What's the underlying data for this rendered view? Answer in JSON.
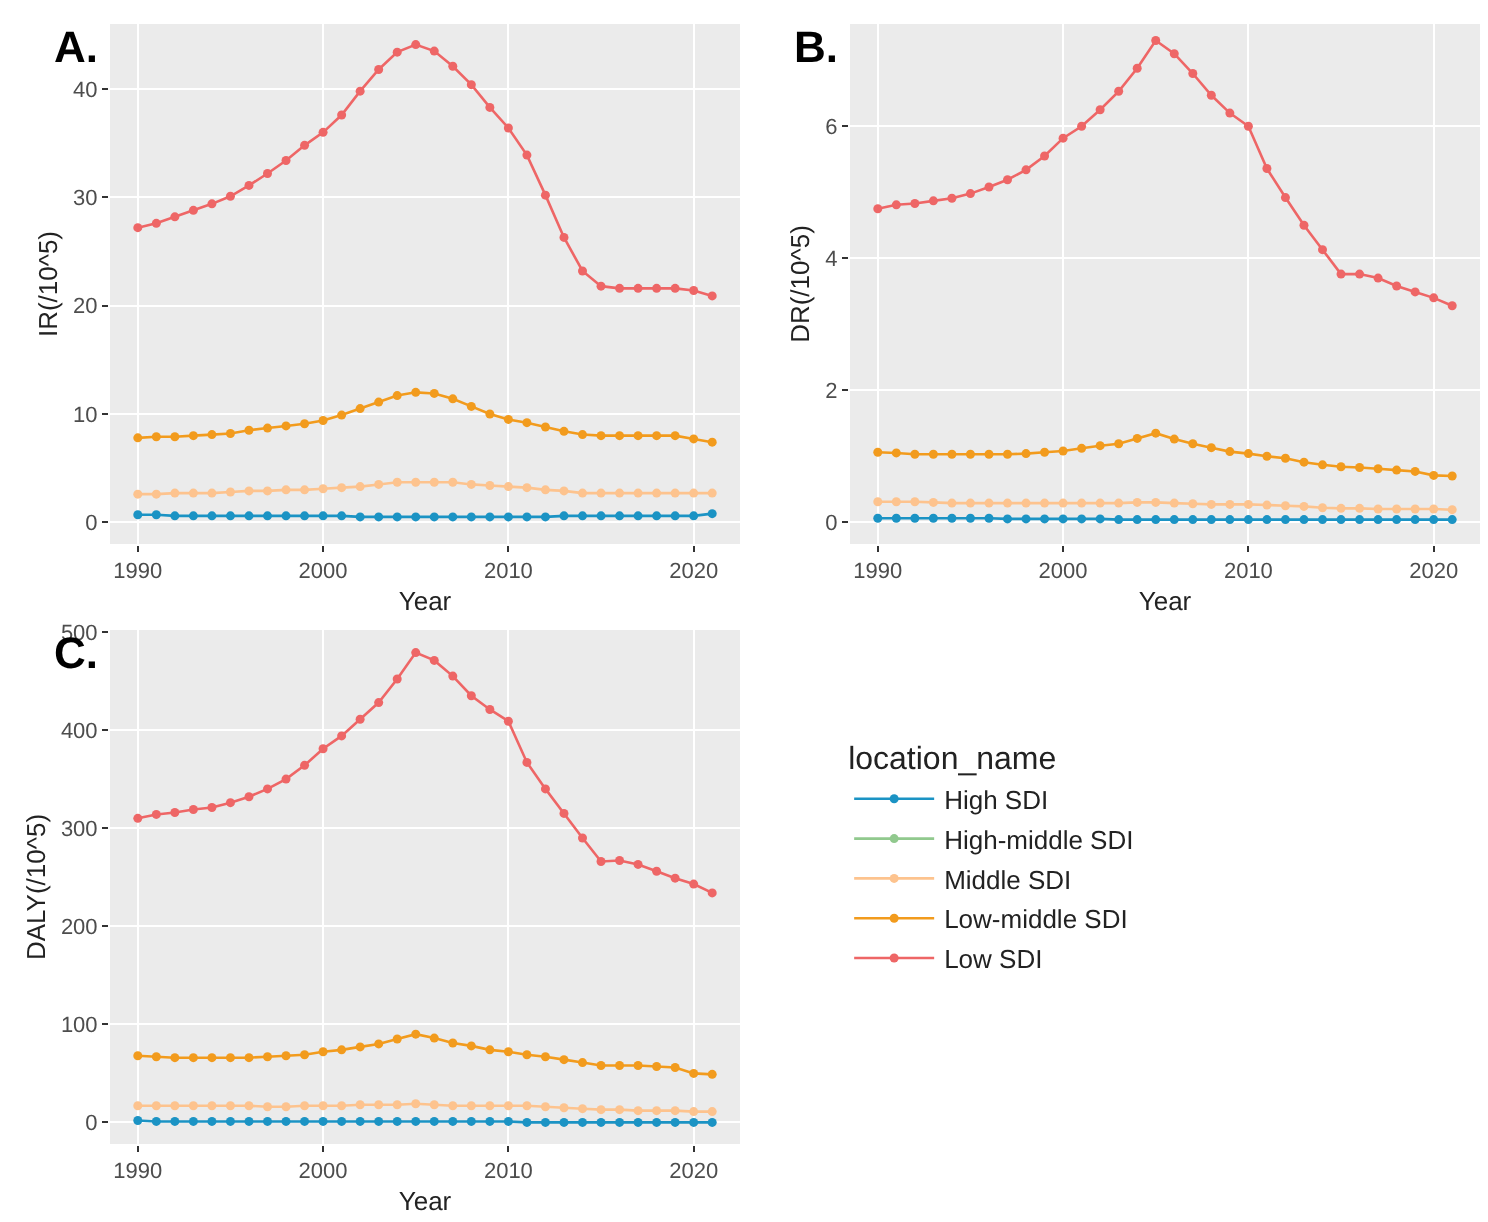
{
  "chart_data": [
    {
      "type": "line",
      "title": "A.",
      "legend": "bottom right",
      "legend_title": "location_name",
      "xlabel": "Year",
      "ylabel": "IR(/10^5)",
      "x": [
        1990,
        1991,
        1992,
        1993,
        1994,
        1995,
        1996,
        1997,
        1998,
        1999,
        2000,
        2001,
        2002,
        2003,
        2004,
        2005,
        2006,
        2007,
        2008,
        2009,
        2010,
        2011,
        2012,
        2013,
        2014,
        2015,
        2016,
        2017,
        2018,
        2019,
        2020,
        2021
      ],
      "xlim": [
        1988.5,
        2022.5
      ],
      "xticks": [
        1990,
        2000,
        2010,
        2020
      ],
      "ylim": [
        -2,
        46
      ],
      "yticks": [
        0,
        10,
        20,
        30,
        40
      ],
      "grid": true,
      "marker": "circle",
      "line_style": "solid",
      "series": [
        {
          "name": "High SDI",
          "color": "#1b93c4",
          "values": [
            0.7,
            0.7,
            0.6,
            0.6,
            0.6,
            0.6,
            0.6,
            0.6,
            0.6,
            0.6,
            0.6,
            0.6,
            0.5,
            0.5,
            0.5,
            0.5,
            0.5,
            0.5,
            0.5,
            0.5,
            0.5,
            0.5,
            0.5,
            0.6,
            0.6,
            0.6,
            0.6,
            0.6,
            0.6,
            0.6,
            0.6,
            0.8
          ]
        },
        {
          "name": "High-middle SDI",
          "color": "#91c98e",
          "values": [
            null,
            null,
            null,
            null,
            null,
            null,
            null,
            null,
            null,
            null,
            null,
            null,
            null,
            null,
            null,
            null,
            null,
            null,
            null,
            null,
            null,
            null,
            null,
            null,
            null,
            null,
            null,
            null,
            null,
            null,
            null,
            null
          ]
        },
        {
          "name": "Middle SDI",
          "color": "#fdc38e",
          "values": [
            2.6,
            2.6,
            2.7,
            2.7,
            2.7,
            2.8,
            2.9,
            2.9,
            3.0,
            3.0,
            3.1,
            3.2,
            3.3,
            3.5,
            3.7,
            3.7,
            3.7,
            3.7,
            3.5,
            3.4,
            3.3,
            3.2,
            3.0,
            2.9,
            2.7,
            2.7,
            2.7,
            2.7,
            2.7,
            2.7,
            2.7,
            2.7
          ]
        },
        {
          "name": "Low-middle SDI",
          "color": "#f29b1d",
          "values": [
            7.8,
            7.9,
            7.9,
            8.0,
            8.1,
            8.2,
            8.5,
            8.7,
            8.9,
            9.1,
            9.4,
            9.9,
            10.5,
            11.1,
            11.7,
            12.0,
            11.9,
            11.4,
            10.7,
            10.0,
            9.5,
            9.2,
            8.8,
            8.4,
            8.1,
            8.0,
            8.0,
            8.0,
            8.0,
            8.0,
            7.7,
            7.4
          ]
        },
        {
          "name": "Low SDI",
          "color": "#ee6666",
          "values": [
            27.2,
            27.6,
            28.2,
            28.8,
            29.4,
            30.1,
            31.1,
            32.2,
            33.4,
            34.8,
            36.0,
            37.6,
            39.8,
            41.8,
            43.4,
            44.1,
            43.5,
            42.1,
            40.4,
            38.3,
            36.4,
            33.9,
            30.2,
            26.3,
            23.2,
            21.8,
            21.6,
            21.6,
            21.6,
            21.6,
            21.4,
            20.9
          ]
        }
      ]
    },
    {
      "type": "line",
      "title": "B.",
      "xlabel": "Year",
      "ylabel": "DR(/10^5)",
      "x": [
        1990,
        1991,
        1992,
        1993,
        1994,
        1995,
        1996,
        1997,
        1998,
        1999,
        2000,
        2001,
        2002,
        2003,
        2004,
        2005,
        2006,
        2007,
        2008,
        2009,
        2010,
        2011,
        2012,
        2013,
        2014,
        2015,
        2016,
        2017,
        2018,
        2019,
        2020,
        2021
      ],
      "xlim": [
        1988.5,
        2022.5
      ],
      "xticks": [
        1990,
        2000,
        2010,
        2020
      ],
      "ylim": [
        -0.33,
        7.55
      ],
      "yticks": [
        0,
        2,
        4,
        6
      ],
      "grid": true,
      "marker": "circle",
      "line_style": "solid",
      "series": [
        {
          "color": "#1b93c4",
          "values": [
            0.06,
            0.06,
            0.06,
            0.06,
            0.06,
            0.06,
            0.06,
            0.05,
            0.05,
            0.05,
            0.05,
            0.05,
            0.05,
            0.04,
            0.04,
            0.04,
            0.04,
            0.04,
            0.04,
            0.04,
            0.04,
            0.04,
            0.04,
            0.04,
            0.04,
            0.04,
            0.04,
            0.04,
            0.04,
            0.04,
            0.04,
            0.04
          ]
        },
        {
          "color": "#fdc38e",
          "values": [
            0.31,
            0.31,
            0.31,
            0.3,
            0.29,
            0.29,
            0.29,
            0.29,
            0.29,
            0.29,
            0.29,
            0.29,
            0.29,
            0.29,
            0.3,
            0.3,
            0.29,
            0.28,
            0.27,
            0.27,
            0.27,
            0.26,
            0.25,
            0.24,
            0.22,
            0.21,
            0.21,
            0.2,
            0.2,
            0.2,
            0.2,
            0.19
          ]
        },
        {
          "color": "#f29b1d",
          "values": [
            1.06,
            1.05,
            1.03,
            1.03,
            1.03,
            1.03,
            1.03,
            1.03,
            1.04,
            1.06,
            1.08,
            1.12,
            1.16,
            1.19,
            1.27,
            1.35,
            1.26,
            1.19,
            1.13,
            1.07,
            1.04,
            1.0,
            0.97,
            0.91,
            0.87,
            0.84,
            0.83,
            0.81,
            0.79,
            0.77,
            0.71,
            0.7
          ]
        },
        {
          "color": "#ee6666",
          "values": [
            4.75,
            4.81,
            4.83,
            4.87,
            4.91,
            4.98,
            5.08,
            5.19,
            5.34,
            5.55,
            5.82,
            6.0,
            6.25,
            6.53,
            6.88,
            7.3,
            7.1,
            6.8,
            6.47,
            6.2,
            6.0,
            5.36,
            4.92,
            4.5,
            4.13,
            3.76,
            3.76,
            3.7,
            3.58,
            3.49,
            3.4,
            3.28
          ]
        }
      ]
    },
    {
      "type": "line",
      "title": "C.",
      "xlabel": "Year",
      "ylabel": "DALY(/10^5)",
      "x": [
        1990,
        1991,
        1992,
        1993,
        1994,
        1995,
        1996,
        1997,
        1998,
        1999,
        2000,
        2001,
        2002,
        2003,
        2004,
        2005,
        2006,
        2007,
        2008,
        2009,
        2010,
        2011,
        2012,
        2013,
        2014,
        2015,
        2016,
        2017,
        2018,
        2019,
        2020,
        2021
      ],
      "xlim": [
        1988.5,
        2022.5
      ],
      "xticks": [
        1990,
        2000,
        2010,
        2020
      ],
      "ylim": [
        -22,
        502
      ],
      "yticks": [
        0,
        100,
        200,
        300,
        400,
        500
      ],
      "grid": true,
      "marker": "circle",
      "line_style": "solid",
      "series": [
        {
          "color": "#1b93c4",
          "values": [
            2,
            1,
            1,
            1,
            1,
            1,
            1,
            1,
            1,
            1,
            1,
            1,
            1,
            1,
            1,
            1,
            1,
            1,
            1,
            1,
            1,
            0,
            0,
            0,
            0,
            0,
            0,
            0,
            0,
            0,
            0,
            0
          ]
        },
        {
          "color": "#fdc38e",
          "values": [
            17,
            17,
            17,
            17,
            17,
            17,
            17,
            16,
            16,
            17,
            17,
            17,
            18,
            18,
            18,
            19,
            18,
            17,
            17,
            17,
            17,
            17,
            16,
            15,
            14,
            13,
            13,
            12,
            12,
            12,
            11,
            11
          ]
        },
        {
          "color": "#f29b1d",
          "values": [
            68,
            67,
            66,
            66,
            66,
            66,
            66,
            67,
            68,
            69,
            72,
            74,
            77,
            80,
            85,
            90,
            86,
            81,
            78,
            74,
            72,
            69,
            67,
            64,
            61,
            58,
            58,
            58,
            57,
            56,
            50,
            49
          ]
        },
        {
          "color": "#ee6666",
          "values": [
            310,
            314,
            316,
            319,
            321,
            326,
            332,
            340,
            350,
            364,
            381,
            394,
            411,
            428,
            452,
            479,
            471,
            455,
            435,
            421,
            409,
            367,
            340,
            315,
            290,
            266,
            267,
            263,
            256,
            249,
            243,
            234
          ]
        }
      ]
    }
  ]
}
